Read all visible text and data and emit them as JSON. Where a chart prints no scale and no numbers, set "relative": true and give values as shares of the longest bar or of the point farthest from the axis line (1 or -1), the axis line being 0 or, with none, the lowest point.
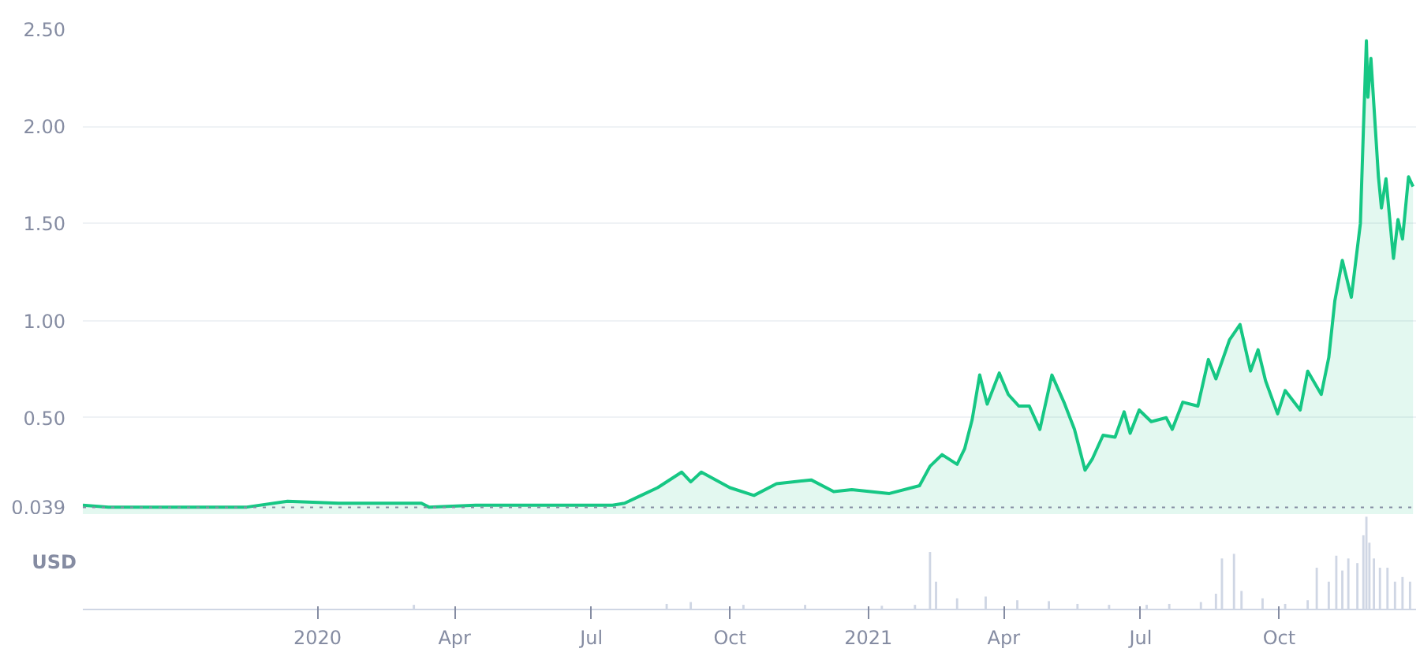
{
  "chart_data": [
    {
      "type": "area",
      "xlim": [
        "2019-07-29",
        "2021-12-31"
      ],
      "ylim": [
        0,
        2.5
      ],
      "yticks": [
        {
          "value": 0.5,
          "label": "0.50"
        },
        {
          "value": 1,
          "label": "1.00"
        },
        {
          "value": 1.5,
          "label": "1.50"
        },
        {
          "value": 2,
          "label": "2.00"
        },
        {
          "value": 2.5,
          "label": "2.50"
        }
      ],
      "grid": "y",
      "tick_labels": "y",
      "ref_lines": [
        {
          "axis": "y",
          "value": 0.039,
          "label": "0.039",
          "color": "#858ca2",
          "line_style": "dotted"
        }
      ],
      "x": [
        "2019-07-29",
        "2019-08-15",
        "2019-09-15",
        "2019-10-15",
        "2019-11-15",
        "2019-12-12",
        "2020-01-15",
        "2020-02-15",
        "2020-03-10",
        "2020-03-15",
        "2020-04-15",
        "2020-05-15",
        "2020-06-15",
        "2020-07-15",
        "2020-07-23",
        "2020-08-03",
        "2020-08-14",
        "2020-08-30",
        "2020-09-05",
        "2020-09-12",
        "2020-10-01",
        "2020-10-17",
        "2020-11-01",
        "2020-11-24",
        "2020-12-09",
        "2020-12-21",
        "2021-01-15",
        "2021-02-04",
        "2021-02-11",
        "2021-02-19",
        "2021-03-01",
        "2021-03-06",
        "2021-03-11",
        "2021-03-16",
        "2021-03-21",
        "2021-03-29",
        "2021-04-04",
        "2021-04-11",
        "2021-04-18",
        "2021-04-25",
        "2021-05-03",
        "2021-05-11",
        "2021-05-18",
        "2021-05-25",
        "2021-05-30",
        "2021-06-06",
        "2021-06-14",
        "2021-06-20",
        "2021-06-24",
        "2021-06-30",
        "2021-07-08",
        "2021-07-18",
        "2021-07-22",
        "2021-07-29",
        "2021-08-08",
        "2021-08-15",
        "2021-08-20",
        "2021-08-29",
        "2021-09-05",
        "2021-09-12",
        "2021-09-17",
        "2021-09-22",
        "2021-09-30",
        "2021-10-05",
        "2021-10-15",
        "2021-10-20",
        "2021-10-29",
        "2021-11-03",
        "2021-11-07",
        "2021-11-12",
        "2021-11-18",
        "2021-11-24",
        "2021-11-26",
        "2021-11-28",
        "2021-11-29",
        "2021-12-01",
        "2021-12-06",
        "2021-12-08",
        "2021-12-11",
        "2021-12-16",
        "2021-12-19",
        "2021-12-22",
        "2021-12-26",
        "2021-12-29"
      ],
      "series": [
        {
          "color": "#16c784",
          "values": [
            0.05,
            0.04,
            0.04,
            0.04,
            0.04,
            0.07,
            0.06,
            0.06,
            0.06,
            0.04,
            0.05,
            0.05,
            0.05,
            0.05,
            0.06,
            0.1,
            0.14,
            0.22,
            0.17,
            0.22,
            0.14,
            0.1,
            0.16,
            0.18,
            0.12,
            0.13,
            0.11,
            0.15,
            0.25,
            0.31,
            0.26,
            0.34,
            0.49,
            0.72,
            0.57,
            0.73,
            0.62,
            0.56,
            0.56,
            0.44,
            0.72,
            0.58,
            0.44,
            0.23,
            0.29,
            0.41,
            0.4,
            0.53,
            0.42,
            0.54,
            0.48,
            0.5,
            0.44,
            0.58,
            0.56,
            0.8,
            0.7,
            0.9,
            0.98,
            0.74,
            0.85,
            0.69,
            0.52,
            0.64,
            0.54,
            0.74,
            0.62,
            0.81,
            1.1,
            1.31,
            1.12,
            1.5,
            1.98,
            2.44,
            2.15,
            2.35,
            1.74,
            1.58,
            1.73,
            1.32,
            1.52,
            1.42,
            1.74,
            1.69
          ]
        }
      ]
    },
    {
      "type": "bar",
      "relative": true,
      "ylabel": "USD",
      "xlim": [
        "2019-07-29",
        "2021-12-31"
      ],
      "tick_labels": "x",
      "xticks": [
        {
          "value": "2020-01-01",
          "label": "2020"
        },
        {
          "value": "2020-04-01",
          "label": "Apr"
        },
        {
          "value": "2020-07-01",
          "label": "Jul"
        },
        {
          "value": "2020-10-01",
          "label": "Oct"
        },
        {
          "value": "2021-01-01",
          "label": "2021"
        },
        {
          "value": "2021-04-01",
          "label": "Apr"
        },
        {
          "value": "2021-07-01",
          "label": "Jul"
        },
        {
          "value": "2021-10-01",
          "label": "Oct"
        }
      ],
      "x": [
        "2020-03-05",
        "2020-08-20",
        "2020-09-05",
        "2020-10-10",
        "2020-11-20",
        "2021-01-10",
        "2021-02-01",
        "2021-02-11",
        "2021-02-15",
        "2021-03-01",
        "2021-03-20",
        "2021-04-10",
        "2021-05-01",
        "2021-05-20",
        "2021-06-10",
        "2021-07-05",
        "2021-07-20",
        "2021-08-10",
        "2021-08-20",
        "2021-08-24",
        "2021-09-01",
        "2021-09-06",
        "2021-09-20",
        "2021-10-05",
        "2021-10-20",
        "2021-10-26",
        "2021-11-03",
        "2021-11-08",
        "2021-11-12",
        "2021-11-16",
        "2021-11-22",
        "2021-11-26",
        "2021-11-28",
        "2021-11-30",
        "2021-12-03",
        "2021-12-07",
        "2021-12-12",
        "2021-12-17",
        "2021-12-22",
        "2021-12-27"
      ],
      "series": [
        {
          "color": "#cfd6e4",
          "values": [
            0.05,
            0.06,
            0.08,
            0.05,
            0.05,
            0.04,
            0.05,
            0.62,
            0.3,
            0.12,
            0.14,
            0.1,
            0.09,
            0.06,
            0.05,
            0.05,
            0.06,
            0.08,
            0.17,
            0.55,
            0.6,
            0.2,
            0.12,
            0.06,
            0.1,
            0.45,
            0.3,
            0.58,
            0.42,
            0.55,
            0.5,
            0.8,
            1.0,
            0.72,
            0.55,
            0.45,
            0.45,
            0.3,
            0.35,
            0.3
          ]
        }
      ]
    }
  ]
}
